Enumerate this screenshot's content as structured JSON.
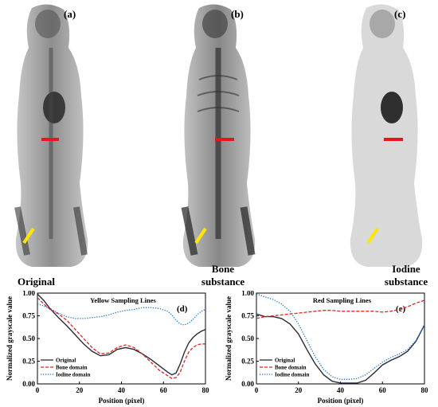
{
  "panels": {
    "a": {
      "letter": "(a)",
      "caption": "Original"
    },
    "b": {
      "letter": "(b)",
      "caption_line1": "Bone",
      "caption_line2": "substance"
    },
    "c": {
      "letter": "(c)",
      "caption_line1": "Iodine",
      "caption_line2": "substance"
    }
  },
  "colors": {
    "original": "#2b2b3a",
    "bone": "#e8231f",
    "iodine": "#1f78d1",
    "yellow_line": "#ffe600",
    "red_line": "#e8141e"
  },
  "chart_data": [
    {
      "type": "line",
      "panel_label": "(d)",
      "title": "Yellow Sampling Lines",
      "xlabel": "Position (pixel)",
      "ylabel": "Normalized grayscale value",
      "xlim": [
        0,
        80
      ],
      "ylim": [
        0,
        1.0
      ],
      "xticks": [
        "0",
        "20",
        "40",
        "60",
        "80"
      ],
      "yticks": [
        "0.00",
        "0.25",
        "0.50",
        "0.75",
        "1.00"
      ],
      "legend_position": "bottom-left",
      "series": [
        {
          "name": "Original",
          "style": "solid",
          "color": "#2b2b3a",
          "x": [
            0,
            3,
            6,
            10,
            14,
            18,
            22,
            26,
            30,
            34,
            38,
            42,
            46,
            50,
            54,
            58,
            62,
            64,
            66,
            68,
            70,
            72,
            74,
            76,
            78,
            80
          ],
          "y": [
            0.99,
            0.92,
            0.83,
            0.73,
            0.64,
            0.54,
            0.44,
            0.36,
            0.31,
            0.32,
            0.38,
            0.4,
            0.38,
            0.33,
            0.27,
            0.2,
            0.13,
            0.1,
            0.12,
            0.22,
            0.35,
            0.45,
            0.51,
            0.55,
            0.58,
            0.6
          ]
        },
        {
          "name": "Bone domain",
          "style": "dashed",
          "color": "#e8231f",
          "x": [
            0,
            3,
            6,
            10,
            14,
            18,
            22,
            26,
            30,
            34,
            38,
            42,
            46,
            50,
            54,
            58,
            62,
            64,
            66,
            68,
            70,
            72,
            74,
            76,
            78,
            80
          ],
          "y": [
            0.95,
            0.88,
            0.82,
            0.77,
            0.7,
            0.6,
            0.5,
            0.4,
            0.33,
            0.34,
            0.4,
            0.43,
            0.4,
            0.33,
            0.24,
            0.15,
            0.09,
            0.06,
            0.07,
            0.13,
            0.25,
            0.35,
            0.4,
            0.43,
            0.44,
            0.44
          ]
        },
        {
          "name": "Iodine domain",
          "style": "dotted",
          "color": "#1f78d1",
          "x": [
            0,
            3,
            6,
            10,
            14,
            18,
            22,
            26,
            30,
            34,
            38,
            42,
            46,
            50,
            54,
            58,
            62,
            64,
            66,
            68,
            70,
            72,
            74,
            76,
            78,
            80
          ],
          "y": [
            0.88,
            0.86,
            0.83,
            0.78,
            0.74,
            0.72,
            0.72,
            0.73,
            0.74,
            0.76,
            0.79,
            0.81,
            0.82,
            0.84,
            0.84,
            0.83,
            0.8,
            0.76,
            0.7,
            0.66,
            0.65,
            0.67,
            0.71,
            0.76,
            0.8,
            0.82
          ]
        }
      ]
    },
    {
      "type": "line",
      "panel_label": "(e)",
      "title": "Red Sampling Lines",
      "xlabel": "Position (pixel)",
      "ylabel": "Normalized grayscale value",
      "xlim": [
        0,
        80
      ],
      "ylim": [
        0,
        1.0
      ],
      "xticks": [
        "0",
        "20",
        "40",
        "60",
        "80"
      ],
      "yticks": [
        "0.00",
        "0.25",
        "0.50",
        "0.75",
        "1.00"
      ],
      "legend_position": "bottom-left",
      "series": [
        {
          "name": "Original",
          "style": "solid",
          "color": "#2b2b3a",
          "x": [
            0,
            4,
            8,
            12,
            16,
            20,
            24,
            28,
            32,
            36,
            40,
            44,
            48,
            52,
            56,
            60,
            64,
            68,
            72,
            76,
            80
          ],
          "y": [
            0.77,
            0.74,
            0.74,
            0.72,
            0.66,
            0.55,
            0.38,
            0.22,
            0.1,
            0.03,
            0.01,
            0.01,
            0.01,
            0.04,
            0.12,
            0.21,
            0.26,
            0.3,
            0.36,
            0.47,
            0.65
          ]
        },
        {
          "name": "Bone domain",
          "style": "dashed",
          "color": "#e8231f",
          "x": [
            0,
            4,
            8,
            12,
            16,
            20,
            24,
            28,
            32,
            36,
            40,
            44,
            48,
            52,
            56,
            60,
            64,
            68,
            72,
            76,
            80
          ],
          "y": [
            0.72,
            0.74,
            0.75,
            0.76,
            0.77,
            0.78,
            0.79,
            0.8,
            0.81,
            0.81,
            0.8,
            0.8,
            0.8,
            0.8,
            0.8,
            0.79,
            0.8,
            0.82,
            0.85,
            0.89,
            0.92
          ]
        },
        {
          "name": "Iodine domain",
          "style": "dotted",
          "color": "#1f78d1",
          "x": [
            0,
            4,
            8,
            12,
            16,
            20,
            24,
            28,
            32,
            36,
            40,
            44,
            48,
            52,
            56,
            60,
            64,
            68,
            72,
            76,
            80
          ],
          "y": [
            0.99,
            0.96,
            0.93,
            0.88,
            0.8,
            0.66,
            0.48,
            0.3,
            0.16,
            0.08,
            0.05,
            0.05,
            0.06,
            0.1,
            0.17,
            0.24,
            0.29,
            0.33,
            0.38,
            0.48,
            0.65
          ]
        }
      ]
    }
  ]
}
